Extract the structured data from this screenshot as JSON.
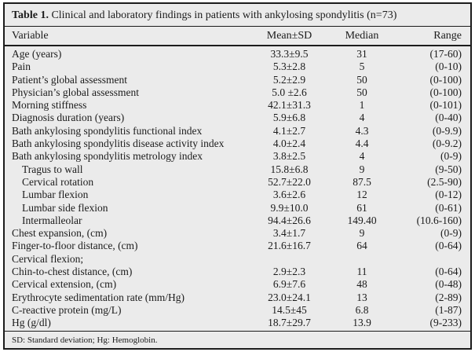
{
  "table": {
    "title_bold": "Table 1.",
    "title_rest": " Clinical and laboratory findings in patients with ankylosing spondylitis (n=73)",
    "columns": [
      "Variable",
      "Mean±SD",
      "Median",
      "Range"
    ],
    "rows": [
      {
        "variable": "Age (years)",
        "mean_sd": "33.3±9.5",
        "median": "31",
        "range": "(17-60)",
        "indent": false
      },
      {
        "variable": "Pain",
        "mean_sd": "5.3±2.8",
        "median": "5",
        "range": "(0-10)",
        "indent": false
      },
      {
        "variable": "Patient’s global assessment",
        "mean_sd": "5.2±2.9",
        "median": "50",
        "range": "(0-100)",
        "indent": false
      },
      {
        "variable": "Physician’s global assessment",
        "mean_sd": "5.0 ±2.6",
        "median": "50",
        "range": "(0-100)",
        "indent": false
      },
      {
        "variable": "Morning stiffness",
        "mean_sd": "42.1±31.3",
        "median": "1",
        "range": "(0-101)",
        "indent": false
      },
      {
        "variable": "Diagnosis duration (years)",
        "mean_sd": "5.9±6.8",
        "median": "4",
        "range": "(0-40)",
        "indent": false
      },
      {
        "variable": "Bath ankylosing spondylitis functional index",
        "mean_sd": "4.1±2.7",
        "median": "4.3",
        "range": "(0-9.9)",
        "indent": false
      },
      {
        "variable": "Bath ankylosing spondylitis disease activity index",
        "mean_sd": "4.0±2.4",
        "median": "4.4",
        "range": "(0-9.2)",
        "indent": false
      },
      {
        "variable": "Bath ankylosing spondylitis metrology index",
        "mean_sd": "3.8±2.5",
        "median": "4",
        "range": "(0-9)",
        "indent": false
      },
      {
        "variable": "Tragus to wall",
        "mean_sd": "15.8±6.8",
        "median": "9",
        "range": "(9-50)",
        "indent": true
      },
      {
        "variable": "Cervical rotation",
        "mean_sd": "52.7±22.0",
        "median": "87.5",
        "range": "(2.5-90)",
        "indent": true
      },
      {
        "variable": "Lumbar flexion",
        "mean_sd": "3.6±2.6",
        "median": "12",
        "range": "(0-12)",
        "indent": true
      },
      {
        "variable": "Lumbar side flexion",
        "mean_sd": "9.9±10.0",
        "median": "61",
        "range": "(0-61)",
        "indent": true
      },
      {
        "variable": "Intermalleolar",
        "mean_sd": "94.4±26.6",
        "median": "149.40",
        "range": "(10.6-160)",
        "indent": true
      },
      {
        "variable": "Chest expansion, (cm)",
        "mean_sd": "3.4±1.7",
        "median": "9",
        "range": "(0-9)",
        "indent": false
      },
      {
        "variable": "Finger-to-floor distance, (cm)",
        "mean_sd": "21.6±16.7",
        "median": "64",
        "range": "(0-64)",
        "indent": false
      },
      {
        "variable": "Cervical flexion;",
        "mean_sd": "",
        "median": "",
        "range": "",
        "indent": false
      },
      {
        "variable": "Chin-to-chest distance, (cm)",
        "mean_sd": "2.9±2.3",
        "median": "11",
        "range": "(0-64)",
        "indent": false
      },
      {
        "variable": "Cervical extension, (cm)",
        "mean_sd": "6.9±7.6",
        "median": "48",
        "range": "(0-48)",
        "indent": false
      },
      {
        "variable": "Erythrocyte sedimentation rate (mm/Hg)",
        "mean_sd": "23.0±24.1",
        "median": "13",
        "range": "(2-89)",
        "indent": false
      },
      {
        "variable": "C-reactive protein (mg/L)",
        "mean_sd": "14.5±45",
        "median": "6.8",
        "range": "(1-87)",
        "indent": false
      },
      {
        "variable": "Hg (g/dl)",
        "mean_sd": "18.7±29.7",
        "median": "13.9",
        "range": "(9-233)",
        "indent": false
      }
    ],
    "footnote": "SD: Standard deviation; Hg: Hemoglobin."
  }
}
